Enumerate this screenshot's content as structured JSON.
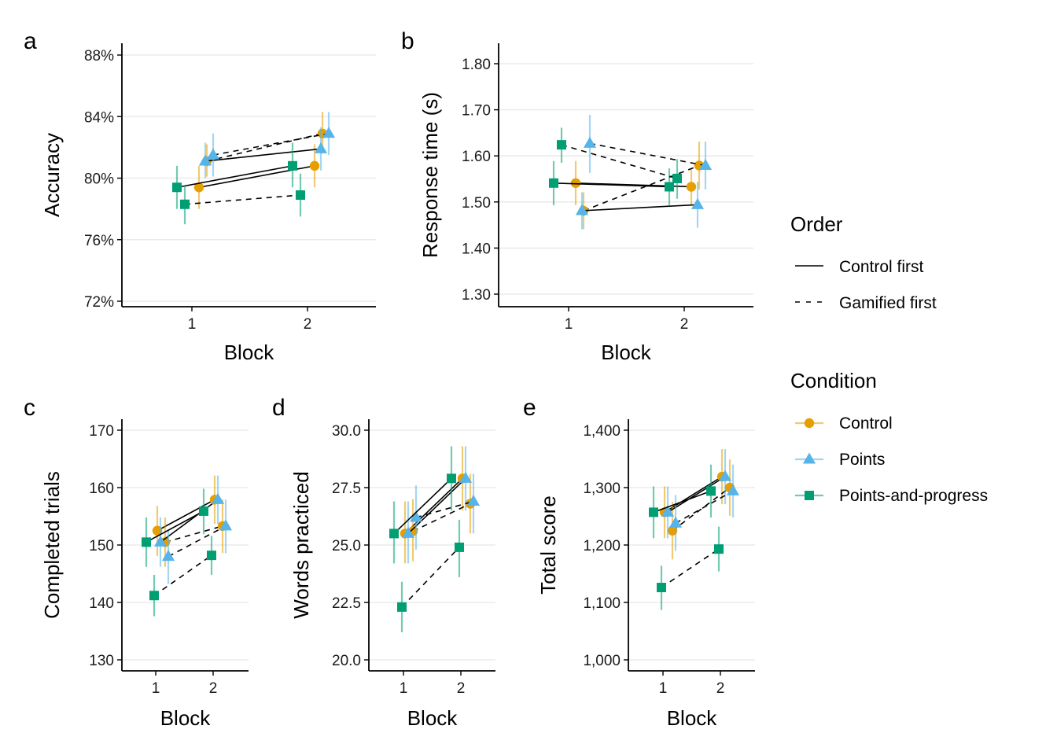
{
  "colors": {
    "control": "#E69F00",
    "points": "#56B4E9",
    "points_and_progress": "#009E73",
    "grid": "#EBEBEB",
    "axis": "#000000"
  },
  "legend": {
    "order_title": "Order",
    "order_items": [
      {
        "label": "Control first",
        "linetype": "solid"
      },
      {
        "label": "Gamified first",
        "linetype": "dashed"
      }
    ],
    "condition_title": "Condition",
    "condition_items": [
      {
        "label": "Control",
        "shape": "circle",
        "color": "#E69F00"
      },
      {
        "label": "Points",
        "shape": "triangle",
        "color": "#56B4E9"
      },
      {
        "label": "Points-and-progress",
        "shape": "square",
        "color": "#009E73"
      }
    ]
  },
  "chart_data": [
    {
      "panel": "a",
      "type": "line",
      "xlabel": "Block",
      "ylabel": "Accuracy",
      "x_ticks": [
        "1",
        "2"
      ],
      "ylim": [
        72,
        88
      ],
      "y_ticks": [
        72,
        76,
        80,
        84,
        88
      ],
      "y_tick_labels": [
        "72%",
        "76%",
        "80%",
        "84%",
        "88%"
      ],
      "series": [
        {
          "condition": "Control",
          "order": "Control first",
          "points": [
            {
              "x": 1,
              "y": 79.4,
              "lo": 78.0,
              "hi": 80.8
            },
            {
              "x": 2,
              "y": 80.8,
              "lo": 79.4,
              "hi": 82.2
            }
          ]
        },
        {
          "condition": "Control",
          "order": "Gamified first",
          "points": [
            {
              "x": 1,
              "y": 81.1,
              "lo": 80.1,
              "hi": 82.2
            },
            {
              "x": 2,
              "y": 82.9,
              "lo": 81.6,
              "hi": 84.3
            }
          ]
        },
        {
          "condition": "Points",
          "order": "Control first",
          "points": [
            {
              "x": 1,
              "y": 81.1,
              "lo": 80.0,
              "hi": 82.3
            },
            {
              "x": 2,
              "y": 81.9,
              "lo": 80.5,
              "hi": 83.3
            }
          ]
        },
        {
          "condition": "Points",
          "order": "Gamified first",
          "points": [
            {
              "x": 1,
              "y": 81.5,
              "lo": 80.1,
              "hi": 82.9
            },
            {
              "x": 2,
              "y": 82.9,
              "lo": 81.5,
              "hi": 84.3
            }
          ]
        },
        {
          "condition": "Points-and-progress",
          "order": "Control first",
          "points": [
            {
              "x": 1,
              "y": 79.4,
              "lo": 78.0,
              "hi": 80.8
            },
            {
              "x": 2,
              "y": 80.8,
              "lo": 79.4,
              "hi": 82.3
            }
          ]
        },
        {
          "condition": "Points-and-progress",
          "order": "Gamified first",
          "points": [
            {
              "x": 1,
              "y": 78.3,
              "lo": 77.0,
              "hi": 79.5
            },
            {
              "x": 2,
              "y": 78.9,
              "lo": 77.5,
              "hi": 80.3
            }
          ]
        }
      ]
    },
    {
      "panel": "b",
      "type": "line",
      "xlabel": "Block",
      "ylabel": "Response time (s)",
      "x_ticks": [
        "1",
        "2"
      ],
      "ylim": [
        1.3,
        1.8
      ],
      "y_ticks": [
        1.3,
        1.4,
        1.5,
        1.6,
        1.7,
        1.8
      ],
      "y_tick_labels": [
        "1.30",
        "1.40",
        "1.50",
        "1.60",
        "1.70",
        "1.80"
      ],
      "series": [
        {
          "condition": "Control",
          "order": "Control first",
          "points": [
            {
              "x": 1,
              "y": 1.541,
              "lo": 1.493,
              "hi": 1.589
            },
            {
              "x": 2,
              "y": 1.533,
              "lo": 1.493,
              "hi": 1.573
            }
          ]
        },
        {
          "condition": "Control",
          "order": "Gamified first",
          "points": [
            {
              "x": 1,
              "y": 1.481,
              "lo": 1.441,
              "hi": 1.521
            },
            {
              "x": 2,
              "y": 1.579,
              "lo": 1.527,
              "hi": 1.631
            }
          ]
        },
        {
          "condition": "Points",
          "order": "Control first",
          "points": [
            {
              "x": 1,
              "y": 1.481,
              "lo": 1.441,
              "hi": 1.521
            },
            {
              "x": 2,
              "y": 1.494,
              "lo": 1.444,
              "hi": 1.544
            }
          ]
        },
        {
          "condition": "Points",
          "order": "Gamified first",
          "points": [
            {
              "x": 1,
              "y": 1.627,
              "lo": 1.563,
              "hi": 1.689
            },
            {
              "x": 2,
              "y": 1.579,
              "lo": 1.527,
              "hi": 1.631
            }
          ]
        },
        {
          "condition": "Points-and-progress",
          "order": "Control first",
          "points": [
            {
              "x": 1,
              "y": 1.541,
              "lo": 1.493,
              "hi": 1.589
            },
            {
              "x": 2,
              "y": 1.533,
              "lo": 1.493,
              "hi": 1.573
            }
          ]
        },
        {
          "condition": "Points-and-progress",
          "order": "Gamified first",
          "points": [
            {
              "x": 1,
              "y": 1.624,
              "lo": 1.585,
              "hi": 1.661
            },
            {
              "x": 2,
              "y": 1.551,
              "lo": 1.507,
              "hi": 1.593
            }
          ]
        }
      ]
    },
    {
      "panel": "c",
      "type": "line",
      "xlabel": "Block",
      "ylabel": "Completed trials",
      "x_ticks": [
        "1",
        "2"
      ],
      "ylim": [
        130,
        170
      ],
      "y_ticks": [
        130,
        140,
        150,
        160,
        170
      ],
      "y_tick_labels": [
        "130",
        "140",
        "150",
        "160",
        "170"
      ],
      "series": [
        {
          "condition": "Control",
          "order": "Control first",
          "points": [
            {
              "x": 1,
              "y": 152.5,
              "lo": 148.1,
              "hi": 156.8
            },
            {
              "x": 2,
              "y": 157.9,
              "lo": 153.7,
              "hi": 162.1
            }
          ]
        },
        {
          "condition": "Control",
          "order": "Gamified first",
          "points": [
            {
              "x": 1,
              "y": 150.5,
              "lo": 146.2,
              "hi": 154.8
            },
            {
              "x": 2,
              "y": 153.3,
              "lo": 148.6,
              "hi": 157.9
            }
          ]
        },
        {
          "condition": "Points",
          "order": "Control first",
          "points": [
            {
              "x": 1,
              "y": 150.5,
              "lo": 146.2,
              "hi": 154.8
            },
            {
              "x": 2,
              "y": 157.9,
              "lo": 153.7,
              "hi": 162.1
            }
          ]
        },
        {
          "condition": "Points",
          "order": "Gamified first",
          "points": [
            {
              "x": 1,
              "y": 148.0,
              "lo": 143.2,
              "hi": 152.6
            },
            {
              "x": 2,
              "y": 153.3,
              "lo": 148.6,
              "hi": 157.9
            }
          ]
        },
        {
          "condition": "Points-and-progress",
          "order": "Control first",
          "points": [
            {
              "x": 1,
              "y": 150.5,
              "lo": 146.2,
              "hi": 154.8
            },
            {
              "x": 2,
              "y": 155.9,
              "lo": 151.9,
              "hi": 159.8
            }
          ]
        },
        {
          "condition": "Points-and-progress",
          "order": "Gamified first",
          "points": [
            {
              "x": 1,
              "y": 141.2,
              "lo": 137.6,
              "hi": 144.8
            },
            {
              "x": 2,
              "y": 148.2,
              "lo": 144.8,
              "hi": 151.6
            }
          ]
        }
      ]
    },
    {
      "panel": "d",
      "type": "line",
      "xlabel": "Block",
      "ylabel": "Words practiced",
      "x_ticks": [
        "1",
        "2"
      ],
      "ylim": [
        20.0,
        30.0
      ],
      "y_ticks": [
        20.0,
        22.5,
        25.0,
        27.5,
        30.0
      ],
      "y_tick_labels": [
        "20.0",
        "22.5",
        "25.0",
        "27.5",
        "30.0"
      ],
      "series": [
        {
          "condition": "Control",
          "order": "Control first",
          "points": [
            {
              "x": 1,
              "y": 25.5,
              "lo": 24.2,
              "hi": 26.9
            },
            {
              "x": 2,
              "y": 27.9,
              "lo": 26.5,
              "hi": 29.3
            }
          ]
        },
        {
          "condition": "Control",
          "order": "Gamified first",
          "points": [
            {
              "x": 1,
              "y": 25.6,
              "lo": 24.3,
              "hi": 27.0
            },
            {
              "x": 2,
              "y": 26.8,
              "lo": 25.5,
              "hi": 28.1
            }
          ]
        },
        {
          "condition": "Points",
          "order": "Control first",
          "points": [
            {
              "x": 1,
              "y": 25.5,
              "lo": 24.2,
              "hi": 26.9
            },
            {
              "x": 2,
              "y": 27.9,
              "lo": 26.5,
              "hi": 29.3
            }
          ]
        },
        {
          "condition": "Points",
          "order": "Gamified first",
          "points": [
            {
              "x": 1,
              "y": 26.2,
              "lo": 24.8,
              "hi": 27.6
            },
            {
              "x": 2,
              "y": 26.9,
              "lo": 25.5,
              "hi": 28.1
            }
          ]
        },
        {
          "condition": "Points-and-progress",
          "order": "Control first",
          "points": [
            {
              "x": 1,
              "y": 25.5,
              "lo": 24.2,
              "hi": 26.9
            },
            {
              "x": 2,
              "y": 27.9,
              "lo": 26.5,
              "hi": 29.3
            }
          ]
        },
        {
          "condition": "Points-and-progress",
          "order": "Gamified first",
          "points": [
            {
              "x": 1,
              "y": 22.3,
              "lo": 21.2,
              "hi": 23.4
            },
            {
              "x": 2,
              "y": 24.9,
              "lo": 23.6,
              "hi": 26.1
            }
          ]
        }
      ]
    },
    {
      "panel": "e",
      "type": "line",
      "xlabel": "Block",
      "ylabel": "Total score",
      "x_ticks": [
        "1",
        "2"
      ],
      "ylim": [
        1000,
        1400
      ],
      "y_ticks": [
        1000,
        1100,
        1200,
        1300,
        1400
      ],
      "y_tick_labels": [
        "1,000",
        "1,100",
        "1,200",
        "1,300",
        "1,400"
      ],
      "series": [
        {
          "condition": "Control",
          "order": "Control first",
          "points": [
            {
              "x": 1,
              "y": 1257,
              "lo": 1212,
              "hi": 1302
            },
            {
              "x": 2,
              "y": 1319,
              "lo": 1271,
              "hi": 1367
            }
          ]
        },
        {
          "condition": "Control",
          "order": "Gamified first",
          "points": [
            {
              "x": 1,
              "y": 1225,
              "lo": 1175,
              "hi": 1275
            },
            {
              "x": 2,
              "y": 1300,
              "lo": 1251,
              "hi": 1349
            }
          ]
        },
        {
          "condition": "Points",
          "order": "Control first",
          "points": [
            {
              "x": 1,
              "y": 1257,
              "lo": 1212,
              "hi": 1302
            },
            {
              "x": 2,
              "y": 1319,
              "lo": 1271,
              "hi": 1367
            }
          ]
        },
        {
          "condition": "Points",
          "order": "Gamified first",
          "points": [
            {
              "x": 1,
              "y": 1238,
              "lo": 1190,
              "hi": 1287
            },
            {
              "x": 2,
              "y": 1294,
              "lo": 1248,
              "hi": 1340
            }
          ]
        },
        {
          "condition": "Points-and-progress",
          "order": "Control first",
          "points": [
            {
              "x": 1,
              "y": 1257,
              "lo": 1212,
              "hi": 1302
            },
            {
              "x": 2,
              "y": 1294,
              "lo": 1248,
              "hi": 1340
            }
          ]
        },
        {
          "condition": "Points-and-progress",
          "order": "Gamified first",
          "points": [
            {
              "x": 1,
              "y": 1126,
              "lo": 1087,
              "hi": 1164
            },
            {
              "x": 2,
              "y": 1193,
              "lo": 1154,
              "hi": 1232
            }
          ]
        }
      ]
    }
  ]
}
